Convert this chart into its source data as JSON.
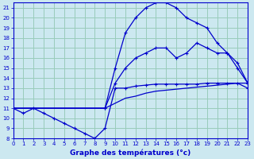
{
  "xlabel": "Graphe des températures (°c)",
  "bg_color": "#cce8f0",
  "grid_color": "#99ccbb",
  "line_color": "#0000cc",
  "xlim": [
    0,
    23
  ],
  "ylim": [
    8,
    21.5
  ],
  "xticks": [
    0,
    1,
    2,
    3,
    4,
    5,
    6,
    7,
    8,
    9,
    10,
    11,
    12,
    13,
    14,
    15,
    16,
    17,
    18,
    19,
    20,
    21,
    22,
    23
  ],
  "yticks": [
    8,
    9,
    10,
    11,
    12,
    13,
    14,
    15,
    16,
    17,
    18,
    19,
    20,
    21
  ],
  "line1_x": [
    0,
    1,
    2,
    3,
    4,
    5,
    6,
    7,
    8,
    9,
    10,
    11,
    12,
    13,
    14,
    15,
    16,
    17,
    18,
    19,
    20,
    21,
    22,
    23
  ],
  "line1_y": [
    11,
    10.5,
    11,
    10.5,
    10,
    9.5,
    9,
    8.5,
    8,
    9,
    13,
    13,
    13.2,
    13.3,
    13.4,
    13.4,
    13.4,
    13.4,
    13.4,
    13.5,
    13.5,
    13.5,
    13.5,
    13
  ],
  "line2_x": [
    0,
    1,
    2,
    3,
    4,
    5,
    6,
    7,
    8,
    9,
    10,
    11,
    12,
    13,
    14,
    15,
    16,
    17,
    18,
    19,
    20,
    21,
    22,
    23
  ],
  "line2_y": [
    11,
    11,
    11,
    11,
    11,
    11,
    11,
    11,
    11,
    11,
    11.5,
    12,
    12.2,
    12.5,
    12.7,
    12.8,
    12.9,
    13,
    13.1,
    13.2,
    13.3,
    13.4,
    13.5,
    13.5
  ],
  "line3_x": [
    0,
    9,
    10,
    11,
    12,
    13,
    14,
    15,
    16,
    17,
    18,
    19,
    20,
    21,
    22,
    23
  ],
  "line3_y": [
    11,
    11,
    13.5,
    15,
    16,
    16.5,
    17,
    17,
    16,
    16.5,
    17.5,
    17,
    16.5,
    16.5,
    15.5,
    13.5
  ],
  "line4_x": [
    0,
    9,
    10,
    11,
    12,
    13,
    14,
    15,
    16,
    17,
    18,
    19,
    20,
    21,
    22,
    23
  ],
  "line4_y": [
    11,
    11,
    15,
    18.5,
    20,
    21,
    21.5,
    21.5,
    21,
    20,
    19.5,
    19,
    17.5,
    16.5,
    15,
    13.5
  ]
}
